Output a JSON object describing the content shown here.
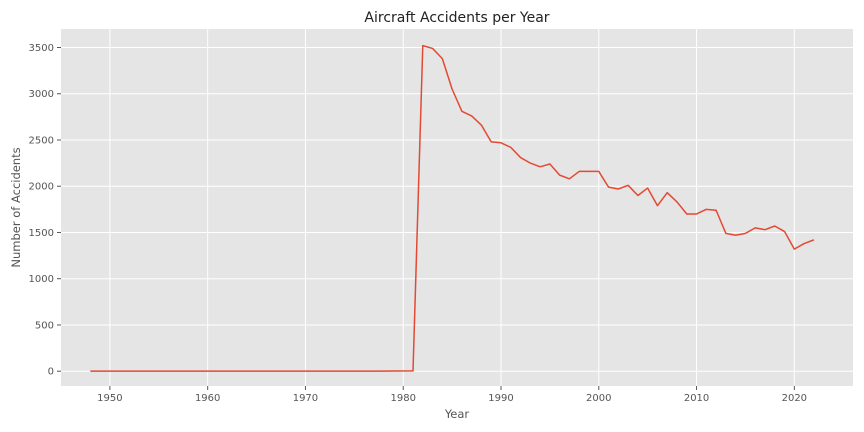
{
  "chart_data": {
    "type": "line",
    "title": "Aircraft Accidents per Year",
    "xlabel": "Year",
    "ylabel": "Number of Accidents",
    "xlim": [
      1945,
      2026
    ],
    "ylim": [
      -160,
      3700
    ],
    "xticks": [
      1950,
      1960,
      1970,
      1980,
      1990,
      2000,
      2010,
      2020
    ],
    "yticks": [
      0,
      500,
      1000,
      1500,
      2000,
      2500,
      3000,
      3500
    ],
    "grid": true,
    "line_color": "#e24a33",
    "background_color": "#e5e5e5",
    "grid_color": "#ffffff",
    "series": [
      {
        "x": [
          1948,
          1962,
          1974,
          1977,
          1979,
          1981,
          1982,
          1983,
          1984,
          1985,
          1986,
          1987,
          1988,
          1989,
          1990,
          1991,
          1992,
          1993,
          1994,
          1995,
          1996,
          1997,
          1998,
          1999,
          2000,
          2001,
          2002,
          2003,
          2004,
          2005,
          2006,
          2007,
          2008,
          2009,
          2010,
          2011,
          2012,
          2013,
          2014,
          2015,
          2016,
          2017,
          2018,
          2019,
          2020,
          2021,
          2022
        ],
        "y": [
          1,
          1,
          1,
          1,
          2,
          3,
          3520,
          3490,
          3380,
          3050,
          2810,
          2760,
          2660,
          2480,
          2470,
          2420,
          2310,
          2250,
          2210,
          2240,
          2120,
          2080,
          2160,
          2160,
          2160,
          1990,
          1970,
          2010,
          1900,
          1980,
          1790,
          1930,
          1830,
          1700,
          1700,
          1750,
          1740,
          1490,
          1470,
          1490,
          1550,
          1530,
          1570,
          1510,
          1320,
          1380,
          1420
        ]
      }
    ]
  }
}
